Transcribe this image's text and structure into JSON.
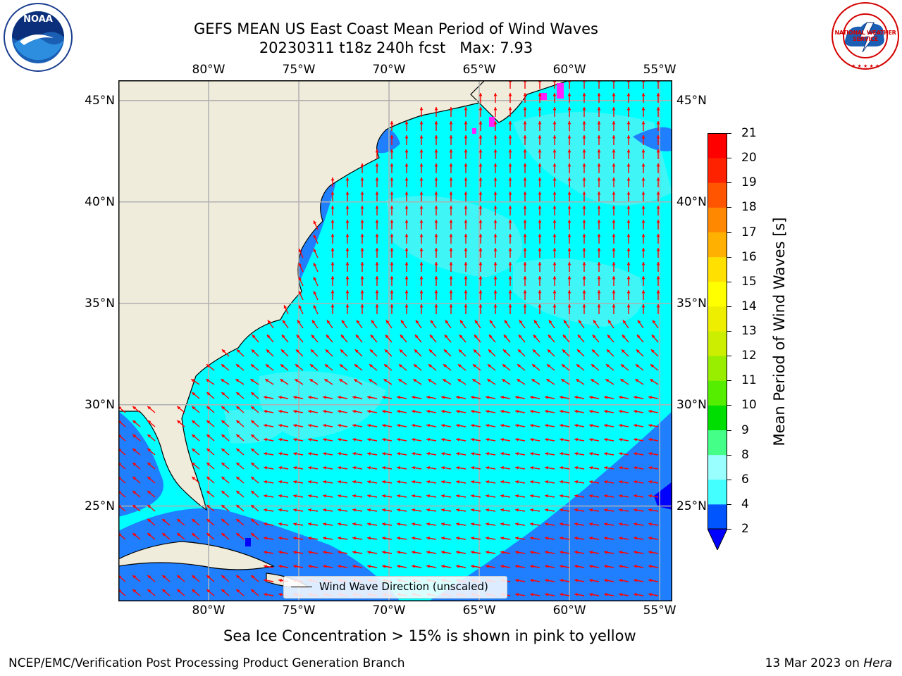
{
  "header": {
    "title_line1": "GEFS MEAN US East Coast Mean Period of Wind Waves",
    "title_line2": "20230311 t18z 240h fcst   Max: 7.93"
  },
  "logos": {
    "left": {
      "icon": "noaa-logo",
      "text": "NOAA"
    },
    "right": {
      "icon": "national-weather-service-logo",
      "text": "NATIONAL WEATHER SERVICE"
    }
  },
  "map": {
    "lon_labels": [
      "80°W",
      "75°W",
      "70°W",
      "65°W",
      "60°W",
      "55°W"
    ],
    "lat_labels": [
      "45°N",
      "40°N",
      "35°N",
      "30°N",
      "25°N"
    ],
    "lon_range": [
      -85,
      -54.3
    ],
    "lat_range": [
      20.3,
      46
    ],
    "legend_text": "Wind Wave Direction (unscaled)",
    "colors": {
      "land": "#efecdb",
      "sea_2_4": "#1f7fff",
      "sea_4_6": "#00ffff",
      "sea_6_8": "#3ff5f5",
      "arrow": "#ff0000",
      "ice": "#ff22ff",
      "grid": "#b0b0b0"
    }
  },
  "colorbar": {
    "label": "Mean Period of Wind Waves [s]",
    "ticks": [
      "2",
      "4",
      "6",
      "8",
      "9",
      "10",
      "11",
      "12",
      "13",
      "14",
      "15",
      "16",
      "17",
      "18",
      "19",
      "20",
      "21"
    ],
    "colors": [
      "#0055ff",
      "#00ffff",
      "#44ffff",
      "#99ffff",
      "#44ff88",
      "#00dd00",
      "#55ee00",
      "#99ee00",
      "#ccee00",
      "#eeee00",
      "#ffff00",
      "#ffe000",
      "#ffb000",
      "#ff8800",
      "#ff5500",
      "#ff2200",
      "#ff0000"
    ],
    "extend_color": "#0000ff"
  },
  "notes": {
    "ice": "Sea Ice Concentration > 15% is shown in pink to yellow"
  },
  "footer": {
    "left": "NCEP/EMC/Verification Post Processing Product Generation Branch",
    "date": "13 Mar 2023 on ",
    "machine": "Hera"
  }
}
